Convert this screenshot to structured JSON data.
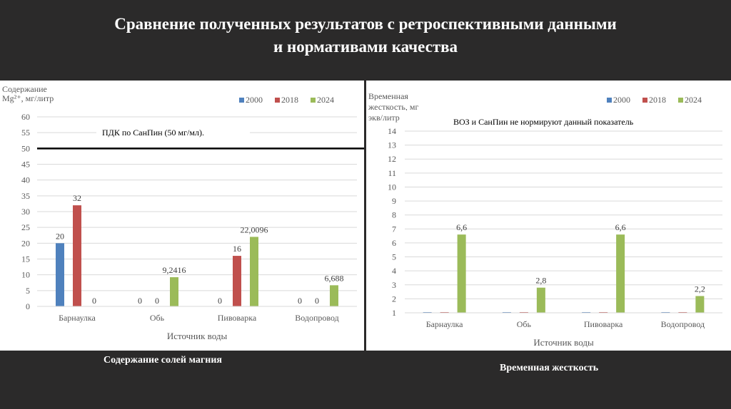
{
  "title_line1": "Сравнение полученных результатов с ретроспективными данными",
  "title_line2": "и нормативами качества",
  "captions": [
    "Содержание солей магния",
    "Временная жесткость"
  ],
  "colors": {
    "2000": "#4f81bd",
    "2018": "#c0504d",
    "2024": "#9bbb59"
  },
  "chart_data": [
    {
      "type": "bar",
      "ylabel_lines": [
        "Содержание",
        "Mg²⁺, мг/литр"
      ],
      "xlabel": "Источник воды",
      "categories": [
        "Барнаулка",
        "Обь",
        "Пивоварка",
        "Водопровод"
      ],
      "series": [
        {
          "name": "2000",
          "values": [
            20,
            0,
            0,
            0
          ],
          "labels": [
            "20",
            "0",
            "0",
            "0"
          ]
        },
        {
          "name": "2018",
          "values": [
            32,
            0,
            16,
            0
          ],
          "labels": [
            "32",
            "0",
            "16",
            "0"
          ]
        },
        {
          "name": "2024",
          "values": [
            0,
            9.2416,
            22.0096,
            6.688
          ],
          "labels": [
            "0",
            "9,2416",
            "22,0096",
            "6,688"
          ]
        }
      ],
      "ylim": [
        0,
        60
      ],
      "yticks": [
        0,
        5,
        10,
        15,
        20,
        25,
        30,
        35,
        40,
        45,
        50,
        55,
        60
      ],
      "reference_line": {
        "value": 50,
        "label": "ПДК  по СанПин (50 мг/мл)."
      },
      "legend": "top-right",
      "grid": true
    },
    {
      "type": "bar",
      "ylabel_lines": [
        "Временная",
        "жесткость, мг",
        "экв/литр"
      ],
      "xlabel": "Источник воды",
      "categories": [
        "Барнаулка",
        "Обь",
        "Пивоварка",
        "Водопровод"
      ],
      "series": [
        {
          "name": "2000",
          "values": [
            0,
            0,
            0,
            0
          ],
          "labels": []
        },
        {
          "name": "2018",
          "values": [
            0,
            0,
            0,
            0
          ],
          "labels": []
        },
        {
          "name": "2024",
          "values": [
            6.6,
            2.8,
            6.6,
            2.2
          ],
          "labels": [
            "6,6",
            "2,8",
            "6,6",
            "2,2"
          ]
        }
      ],
      "ylim": [
        1,
        14
      ],
      "yticks": [
        1,
        2,
        3,
        4,
        5,
        6,
        7,
        8,
        9,
        10,
        11,
        12,
        13,
        14
      ],
      "annotation": "ВОЗ и СанПин не нормируют данный показатель",
      "legend": "top-right",
      "grid": true
    }
  ]
}
